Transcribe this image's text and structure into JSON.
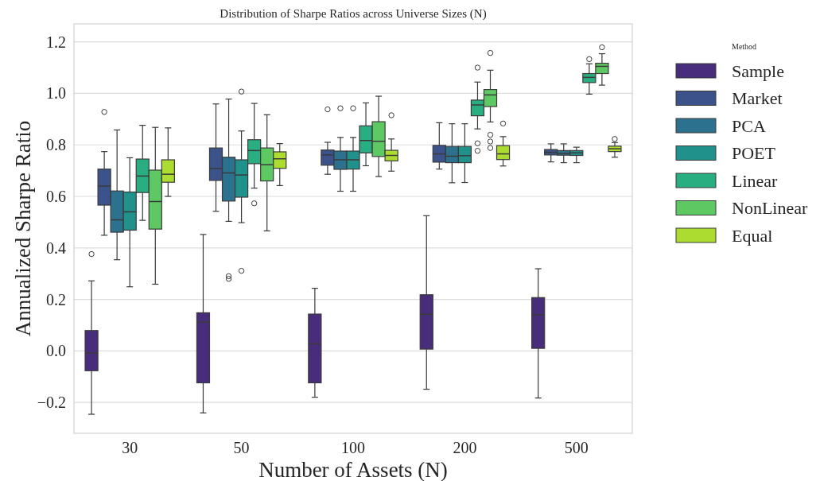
{
  "chart_data": {
    "type": "box",
    "title": "Distribution of Sharpe Ratios across Universe Sizes (N)",
    "xlabel": "Number of Assets (N)",
    "ylabel": "Annualized Sharpe Ratio",
    "legend_title": "Method",
    "categories": [
      "30",
      "50",
      "100",
      "200",
      "500"
    ],
    "ylim": [
      -0.32,
      1.27
    ],
    "yticks": [
      {
        "value": -0.2,
        "label": "−0.2"
      },
      {
        "value": 0,
        "label": "0.0"
      },
      {
        "value": 0.2,
        "label": "0.2"
      },
      {
        "value": 0.4,
        "label": "0.4"
      },
      {
        "value": 0.6,
        "label": "0.6"
      },
      {
        "value": 0.8,
        "label": "0.8"
      },
      {
        "value": 1.0,
        "label": "1.0"
      },
      {
        "value": 1.2,
        "label": "1.2"
      }
    ],
    "grid": "y",
    "legend": "right",
    "series": [
      {
        "name": "Sample",
        "color": "#472d7b",
        "boxes": [
          {
            "low": -0.246,
            "q1": -0.077,
            "median": -0.008,
            "q3": 0.079,
            "high": 0.272,
            "outliers": [
              0.376
            ]
          },
          {
            "low": -0.241,
            "q1": -0.124,
            "median": 0.112,
            "q3": 0.148,
            "high": 0.452
          },
          {
            "low": -0.18,
            "q1": -0.124,
            "median": 0.028,
            "q3": 0.143,
            "high": 0.243
          },
          {
            "low": -0.149,
            "q1": 0.007,
            "median": 0.142,
            "q3": 0.218,
            "high": 0.525
          },
          {
            "low": -0.183,
            "q1": 0.01,
            "median": 0.14,
            "q3": 0.207,
            "high": 0.319
          }
        ]
      },
      {
        "name": "Market",
        "color": "#3b528b",
        "boxes": [
          {
            "low": 0.449,
            "q1": 0.566,
            "median": 0.64,
            "q3": 0.706,
            "high": 0.774,
            "outliers": [
              0.928
            ]
          },
          {
            "low": 0.542,
            "q1": 0.662,
            "median": 0.708,
            "q3": 0.788,
            "high": 0.959
          },
          {
            "low": 0.686,
            "q1": 0.721,
            "median": 0.761,
            "q3": 0.78,
            "high": 0.81,
            "outliers": [
              0.938
            ]
          },
          {
            "low": 0.706,
            "q1": 0.733,
            "median": 0.765,
            "q3": 0.798,
            "high": 0.886
          },
          {
            "low": 0.734,
            "q1": 0.761,
            "median": 0.771,
            "q3": 0.782,
            "high": 0.804
          }
        ]
      },
      {
        "name": "PCA",
        "color": "#2c728e",
        "boxes": [
          {
            "low": 0.354,
            "q1": 0.461,
            "median": 0.509,
            "q3": 0.621,
            "high": 0.858
          },
          {
            "low": 0.503,
            "q1": 0.582,
            "median": 0.691,
            "q3": 0.752,
            "high": 0.978,
            "outliers": [
              0.29,
              0.28
            ]
          },
          {
            "low": 0.62,
            "q1": 0.705,
            "median": 0.742,
            "q3": 0.776,
            "high": 0.829,
            "outliers": [
              0.942
            ]
          },
          {
            "low": 0.653,
            "q1": 0.731,
            "median": 0.756,
            "q3": 0.794,
            "high": 0.882
          },
          {
            "low": 0.731,
            "q1": 0.76,
            "median": 0.767,
            "q3": 0.778,
            "high": 0.804
          }
        ]
      },
      {
        "name": "POET",
        "color": "#21918c",
        "boxes": [
          {
            "low": 0.249,
            "q1": 0.469,
            "median": 0.54,
            "q3": 0.617,
            "high": 0.75
          },
          {
            "low": 0.498,
            "q1": 0.597,
            "median": 0.683,
            "q3": 0.742,
            "high": 0.854,
            "outliers": [
              1.007,
              0.311
            ]
          },
          {
            "low": 0.62,
            "q1": 0.706,
            "median": 0.742,
            "q3": 0.776,
            "high": 0.829,
            "outliers": [
              0.942
            ]
          },
          {
            "low": 0.654,
            "q1": 0.731,
            "median": 0.758,
            "q3": 0.794,
            "high": 0.882
          },
          {
            "low": 0.731,
            "q1": 0.759,
            "median": 0.769,
            "q3": 0.778,
            "high": 0.791
          }
        ]
      },
      {
        "name": "Linear",
        "color": "#28ae80",
        "boxes": [
          {
            "low": 0.507,
            "q1": 0.615,
            "median": 0.679,
            "q3": 0.745,
            "high": 0.876
          },
          {
            "low": 0.632,
            "q1": 0.727,
            "median": 0.778,
            "q3": 0.82,
            "high": 0.961,
            "outliers": [
              0.573
            ]
          },
          {
            "low": 0.719,
            "q1": 0.769,
            "median": 0.817,
            "q3": 0.874,
            "high": 0.963
          },
          {
            "low": 0.862,
            "q1": 0.913,
            "median": 0.955,
            "q3": 0.974,
            "high": 1.044,
            "outliers": [
              1.1,
              0.806,
              0.777
            ]
          },
          {
            "low": 0.997,
            "q1": 1.042,
            "median": 1.062,
            "q3": 1.077,
            "high": 1.115,
            "outliers": [
              1.133
            ]
          }
        ]
      },
      {
        "name": "NonLinear",
        "color": "#5ec962",
        "boxes": [
          {
            "low": 0.259,
            "q1": 0.473,
            "median": 0.58,
            "q3": 0.702,
            "high": 0.868
          },
          {
            "low": 0.466,
            "q1": 0.66,
            "median": 0.723,
            "q3": 0.788,
            "high": 0.917
          },
          {
            "low": 0.677,
            "q1": 0.755,
            "median": 0.814,
            "q3": 0.89,
            "high": 0.989
          },
          {
            "low": 0.889,
            "q1": 0.949,
            "median": 0.994,
            "q3": 1.015,
            "high": 1.09,
            "outliers": [
              1.157,
              0.839,
              0.813,
              0.788
            ]
          },
          {
            "low": 1.032,
            "q1": 1.077,
            "median": 1.105,
            "q3": 1.117,
            "high": 1.154,
            "outliers": [
              1.179
            ]
          }
        ]
      },
      {
        "name": "Equal",
        "color": "#addc30",
        "boxes": [
          {
            "low": 0.6,
            "q1": 0.655,
            "median": 0.686,
            "q3": 0.742,
            "high": 0.866
          },
          {
            "low": 0.642,
            "q1": 0.709,
            "median": 0.746,
            "q3": 0.773,
            "high": 0.805
          },
          {
            "low": 0.698,
            "q1": 0.738,
            "median": 0.759,
            "q3": 0.779,
            "high": 0.823,
            "outliers": [
              0.915
            ]
          },
          {
            "low": 0.718,
            "q1": 0.743,
            "median": 0.765,
            "q3": 0.797,
            "high": 0.832,
            "outliers": [
              0.883
            ]
          },
          {
            "low": 0.752,
            "q1": 0.774,
            "median": 0.785,
            "q3": 0.795,
            "high": 0.809,
            "outliers": [
              0.823
            ]
          }
        ]
      }
    ]
  }
}
